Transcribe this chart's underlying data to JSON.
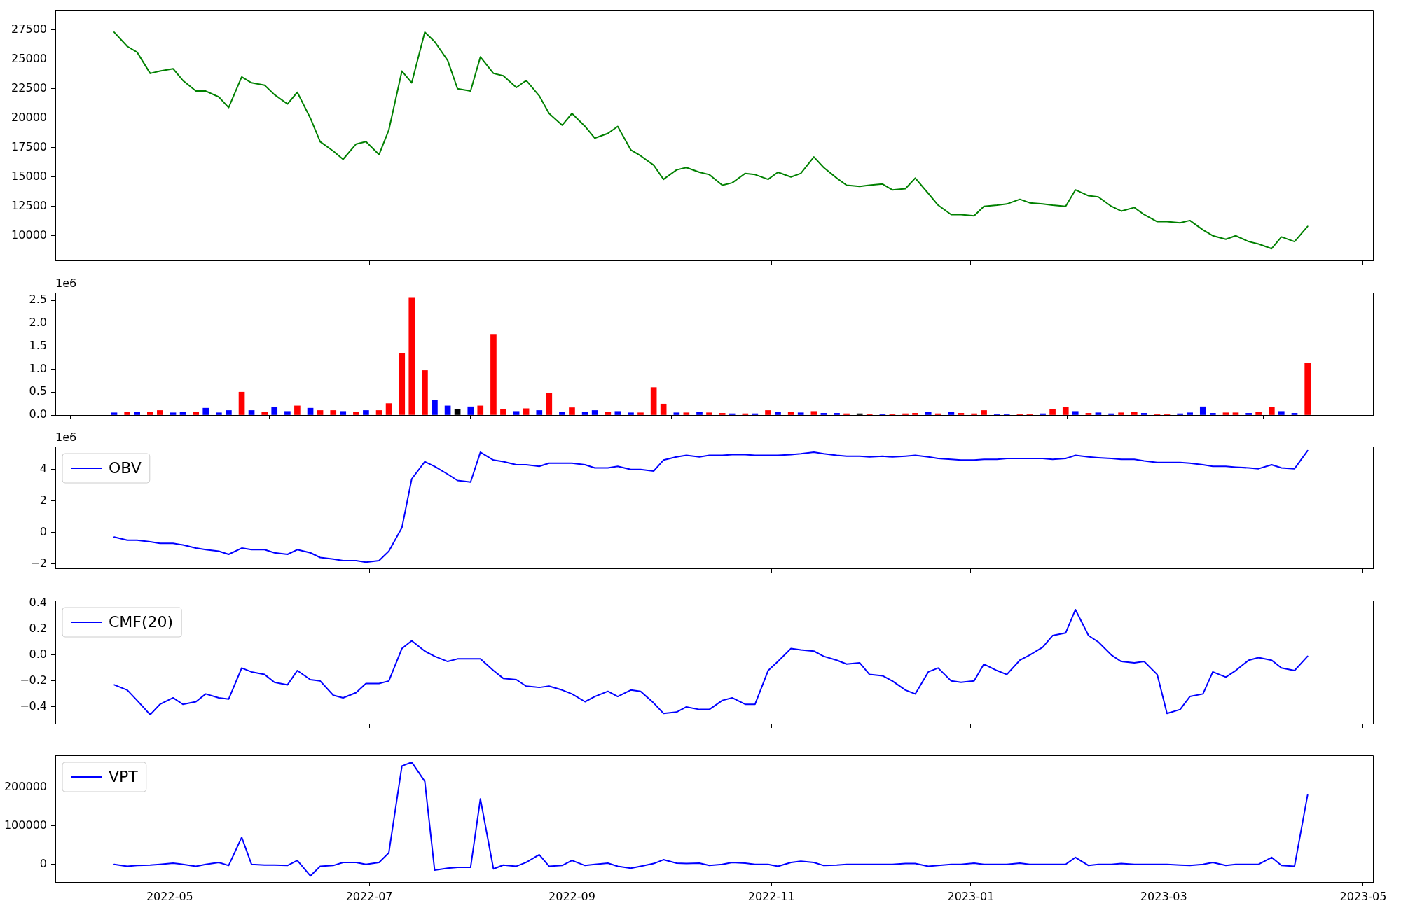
{
  "chart_data": [
    {
      "type": "line",
      "x": [
        "2022-04-14",
        "2022-04-18",
        "2022-04-21",
        "2022-04-25",
        "2022-04-28",
        "2022-05-02",
        "2022-05-05",
        "2022-05-09",
        "2022-05-12",
        "2022-05-16",
        "2022-05-19",
        "2022-05-23",
        "2022-05-26",
        "2022-05-30",
        "2022-06-02",
        "2022-06-06",
        "2022-06-09",
        "2022-06-13",
        "2022-06-16",
        "2022-06-20",
        "2022-06-23",
        "2022-06-27",
        "2022-06-30",
        "2022-07-04",
        "2022-07-07",
        "2022-07-11",
        "2022-07-14",
        "2022-07-18",
        "2022-07-21",
        "2022-07-25",
        "2022-07-28",
        "2022-08-01",
        "2022-08-04",
        "2022-08-08",
        "2022-08-11",
        "2022-08-15",
        "2022-08-18",
        "2022-08-22",
        "2022-08-25",
        "2022-08-29",
        "2022-09-01",
        "2022-09-05",
        "2022-09-08",
        "2022-09-12",
        "2022-09-15",
        "2022-09-19",
        "2022-09-22",
        "2022-09-26",
        "2022-09-29",
        "2022-10-03",
        "2022-10-06",
        "2022-10-10",
        "2022-10-13",
        "2022-10-17",
        "2022-10-20",
        "2022-10-24",
        "2022-10-27",
        "2022-10-31",
        "2022-11-03",
        "2022-11-07",
        "2022-11-10",
        "2022-11-14",
        "2022-11-17",
        "2022-11-21",
        "2022-11-24",
        "2022-11-28",
        "2022-12-01",
        "2022-12-05",
        "2022-12-08",
        "2022-12-12",
        "2022-12-15",
        "2022-12-19",
        "2022-12-22",
        "2022-12-26",
        "2022-12-29",
        "2023-01-02",
        "2023-01-05",
        "2023-01-09",
        "2023-01-12",
        "2023-01-16",
        "2023-01-19",
        "2023-01-23",
        "2023-01-26",
        "2023-01-30",
        "2023-02-02",
        "2023-02-06",
        "2023-02-09",
        "2023-02-13",
        "2023-02-16",
        "2023-02-20",
        "2023-02-23",
        "2023-02-27",
        "2023-03-02",
        "2023-03-06",
        "2023-03-09",
        "2023-03-13",
        "2023-03-16",
        "2023-03-20",
        "2023-03-23",
        "2023-03-27",
        "2023-03-30",
        "2023-04-03",
        "2023-04-06",
        "2023-04-10",
        "2023-04-14"
      ],
      "series": [
        {
          "color": "#008000",
          "values": [
            27300,
            26100,
            25600,
            23800,
            24000,
            24200,
            23200,
            22300,
            22300,
            21800,
            20900,
            23500,
            23000,
            22800,
            22000,
            21200,
            22200,
            20000,
            18000,
            17200,
            16500,
            17800,
            18000,
            16900,
            19000,
            24000,
            23000,
            27300,
            26500,
            24900,
            22500,
            22300,
            25200,
            23800,
            23600,
            22600,
            23200,
            21900,
            20400,
            19400,
            20400,
            19300,
            18300,
            18700,
            19300,
            17300,
            16800,
            16000,
            14800,
            15600,
            15800,
            15400,
            15200,
            14300,
            14500,
            15300,
            15200,
            14800,
            15400,
            15000,
            15300,
            16700,
            15800,
            14900,
            14300,
            14200,
            14300,
            14400,
            13900,
            14000,
            14900,
            13600,
            12600,
            11800,
            11800,
            11700,
            12500,
            12600,
            12700,
            13100,
            12800,
            12700,
            12600,
            12500,
            13900,
            13400,
            13300,
            12500,
            12100,
            12400,
            11800,
            11200,
            11200,
            11100,
            11300,
            10500,
            10000,
            9700,
            10000,
            9500,
            9300,
            8900,
            9900,
            9500,
            10800
          ]
        }
      ],
      "xlim": [
        "2022-03-27",
        "2023-05-04"
      ],
      "xticks": [
        "2022-05",
        "2022-07",
        "2022-09",
        "2022-11",
        "2023-01",
        "2023-03",
        "2023-05"
      ],
      "ylim": [
        7900,
        29150
      ],
      "yticks": [
        10000,
        12500,
        15000,
        17500,
        20000,
        22500,
        25000,
        27500
      ],
      "tick_labels": "y"
    },
    {
      "type": "bar",
      "x": [
        "2022-04-14",
        "2022-04-18",
        "2022-04-21",
        "2022-04-25",
        "2022-04-28",
        "2022-05-02",
        "2022-05-05",
        "2022-05-09",
        "2022-05-12",
        "2022-05-16",
        "2022-05-19",
        "2022-05-23",
        "2022-05-26",
        "2022-05-30",
        "2022-06-02",
        "2022-06-06",
        "2022-06-09",
        "2022-06-13",
        "2022-06-16",
        "2022-06-20",
        "2022-06-23",
        "2022-06-27",
        "2022-06-30",
        "2022-07-04",
        "2022-07-07",
        "2022-07-11",
        "2022-07-14",
        "2022-07-18",
        "2022-07-21",
        "2022-07-25",
        "2022-07-28",
        "2022-08-01",
        "2022-08-04",
        "2022-08-08",
        "2022-08-11",
        "2022-08-15",
        "2022-08-18",
        "2022-08-22",
        "2022-08-25",
        "2022-08-29",
        "2022-09-01",
        "2022-09-05",
        "2022-09-08",
        "2022-09-12",
        "2022-09-15",
        "2022-09-19",
        "2022-09-22",
        "2022-09-26",
        "2022-09-29",
        "2022-10-03",
        "2022-10-06",
        "2022-10-10",
        "2022-10-13",
        "2022-10-17",
        "2022-10-20",
        "2022-10-24",
        "2022-10-27",
        "2022-10-31",
        "2022-11-03",
        "2022-11-07",
        "2022-11-10",
        "2022-11-14",
        "2022-11-17",
        "2022-11-21",
        "2022-11-24",
        "2022-11-28",
        "2022-12-01",
        "2022-12-05",
        "2022-12-08",
        "2022-12-12",
        "2022-12-15",
        "2022-12-19",
        "2022-12-22",
        "2022-12-26",
        "2022-12-29",
        "2023-01-02",
        "2023-01-05",
        "2023-01-09",
        "2023-01-12",
        "2023-01-16",
        "2023-01-19",
        "2023-01-23",
        "2023-01-26",
        "2023-01-30",
        "2023-02-02",
        "2023-02-06",
        "2023-02-09",
        "2023-02-13",
        "2023-02-16",
        "2023-02-20",
        "2023-02-23",
        "2023-02-27",
        "2023-03-02",
        "2023-03-06",
        "2023-03-09",
        "2023-03-13",
        "2023-03-16",
        "2023-03-20",
        "2023-03-23",
        "2023-03-27",
        "2023-03-30",
        "2023-04-03",
        "2023-04-06",
        "2023-04-10",
        "2023-04-14"
      ],
      "values": [
        0.05,
        0.06,
        0.06,
        0.07,
        0.1,
        0.05,
        0.07,
        0.06,
        0.15,
        0.05,
        0.1,
        0.5,
        0.1,
        0.07,
        0.17,
        0.08,
        0.2,
        0.15,
        0.1,
        0.1,
        0.08,
        0.07,
        0.1,
        0.1,
        0.25,
        1.35,
        2.55,
        0.97,
        0.33,
        0.2,
        0.12,
        0.18,
        0.2,
        1.76,
        0.12,
        0.08,
        0.14,
        0.1,
        0.47,
        0.06,
        0.16,
        0.06,
        0.1,
        0.07,
        0.08,
        0.05,
        0.05,
        0.6,
        0.24,
        0.05,
        0.05,
        0.06,
        0.05,
        0.04,
        0.03,
        0.03,
        0.03,
        0.1,
        0.06,
        0.07,
        0.05,
        0.08,
        0.04,
        0.04,
        0.03,
        0.03,
        0.02,
        0.02,
        0.02,
        0.03,
        0.04,
        0.06,
        0.03,
        0.07,
        0.04,
        0.03,
        0.1,
        0.02,
        0.01,
        0.02,
        0.02,
        0.03,
        0.12,
        0.17,
        0.08,
        0.04,
        0.05,
        0.03,
        0.05,
        0.06,
        0.04,
        0.02,
        0.02,
        0.03,
        0.05,
        0.18,
        0.04,
        0.05,
        0.05,
        0.04,
        0.06,
        0.17,
        0.08,
        0.04,
        1.13
      ],
      "colors": [
        "#0000ff",
        "#ff0000",
        "#0000ff",
        "#ff0000",
        "#ff0000",
        "#0000ff",
        "#0000ff",
        "#ff0000",
        "#0000ff",
        "#0000ff",
        "#0000ff",
        "#ff0000",
        "#0000ff",
        "#ff0000",
        "#0000ff",
        "#0000ff",
        "#ff0000",
        "#0000ff",
        "#ff0000",
        "#ff0000",
        "#0000ff",
        "#ff0000",
        "#0000ff",
        "#ff0000",
        "#ff0000",
        "#ff0000",
        "#ff0000",
        "#ff0000",
        "#0000ff",
        "#0000ff",
        "#000000",
        "#0000ff",
        "#ff0000",
        "#ff0000",
        "#ff0000",
        "#0000ff",
        "#ff0000",
        "#0000ff",
        "#ff0000",
        "#0000ff",
        "#ff0000",
        "#0000ff",
        "#0000ff",
        "#ff0000",
        "#0000ff",
        "#0000ff",
        "#ff0000",
        "#ff0000",
        "#ff0000",
        "#0000ff",
        "#ff0000",
        "#0000ff",
        "#ff0000",
        "#ff0000",
        "#0000ff",
        "#ff0000",
        "#0000ff",
        "#ff0000",
        "#0000ff",
        "#ff0000",
        "#0000ff",
        "#ff0000",
        "#0000ff",
        "#0000ff",
        "#ff0000",
        "#000000",
        "#ff0000",
        "#0000ff",
        "#ff0000",
        "#ff0000",
        "#ff0000",
        "#0000ff",
        "#ff0000",
        "#0000ff",
        "#ff0000",
        "#ff0000",
        "#ff0000",
        "#0000ff",
        "#0000ff",
        "#ff0000",
        "#ff0000",
        "#0000ff",
        "#ff0000",
        "#ff0000",
        "#0000ff",
        "#ff0000",
        "#0000ff",
        "#0000ff",
        "#ff0000",
        "#ff0000",
        "#0000ff",
        "#ff0000",
        "#ff0000",
        "#0000ff",
        "#0000ff",
        "#0000ff",
        "#0000ff",
        "#ff0000",
        "#ff0000",
        "#0000ff",
        "#ff0000",
        "#ff0000",
        "#0000ff",
        "#0000ff",
        "#ff0000"
      ],
      "xlim": [
        "2022-03-27",
        "2023-05-04"
      ],
      "xticks": [
        "2022-05",
        "2022-07",
        "2022-09",
        "2022-11",
        "2023-01",
        "2023-03",
        "2023-05"
      ],
      "ylim": [
        0,
        2.67
      ],
      "yticks": [
        {
          "value": 0,
          "label": "0.0"
        },
        0.5,
        {
          "value": 1,
          "label": "1.0"
        },
        1.5,
        {
          "value": 2,
          "label": "2.0"
        },
        2.5
      ],
      "annotations": [
        "1e6"
      ],
      "tick_labels": "y"
    },
    {
      "type": "line",
      "x": [
        "2022-04-14",
        "2022-04-18",
        "2022-04-21",
        "2022-04-25",
        "2022-04-28",
        "2022-05-02",
        "2022-05-05",
        "2022-05-09",
        "2022-05-12",
        "2022-05-16",
        "2022-05-19",
        "2022-05-23",
        "2022-05-26",
        "2022-05-30",
        "2022-06-02",
        "2022-06-06",
        "2022-06-09",
        "2022-06-13",
        "2022-06-16",
        "2022-06-20",
        "2022-06-23",
        "2022-06-27",
        "2022-06-30",
        "2022-07-04",
        "2022-07-07",
        "2022-07-11",
        "2022-07-14",
        "2022-07-18",
        "2022-07-21",
        "2022-07-25",
        "2022-07-28",
        "2022-08-01",
        "2022-08-04",
        "2022-08-08",
        "2022-08-11",
        "2022-08-15",
        "2022-08-18",
        "2022-08-22",
        "2022-08-25",
        "2022-08-29",
        "2022-09-01",
        "2022-09-05",
        "2022-09-08",
        "2022-09-12",
        "2022-09-15",
        "2022-09-19",
        "2022-09-22",
        "2022-09-26",
        "2022-09-29",
        "2022-10-03",
        "2022-10-06",
        "2022-10-10",
        "2022-10-13",
        "2022-10-17",
        "2022-10-20",
        "2022-10-24",
        "2022-10-27",
        "2022-10-31",
        "2022-11-03",
        "2022-11-07",
        "2022-11-10",
        "2022-11-14",
        "2022-11-17",
        "2022-11-21",
        "2022-11-24",
        "2022-11-28",
        "2022-12-01",
        "2022-12-05",
        "2022-12-08",
        "2022-12-12",
        "2022-12-15",
        "2022-12-19",
        "2022-12-22",
        "2022-12-26",
        "2022-12-29",
        "2023-01-02",
        "2023-01-05",
        "2023-01-09",
        "2023-01-12",
        "2023-01-16",
        "2023-01-19",
        "2023-01-23",
        "2023-01-26",
        "2023-01-30",
        "2023-02-02",
        "2023-02-06",
        "2023-02-09",
        "2023-02-13",
        "2023-02-16",
        "2023-02-20",
        "2023-02-23",
        "2023-02-27",
        "2023-03-02",
        "2023-03-06",
        "2023-03-09",
        "2023-03-13",
        "2023-03-16",
        "2023-03-20",
        "2023-03-23",
        "2023-03-27",
        "2023-03-30",
        "2023-04-03",
        "2023-04-06",
        "2023-04-10",
        "2023-04-14"
      ],
      "series": [
        {
          "name": "OBV",
          "color": "#0000ff",
          "values": [
            -0.3,
            -0.5,
            -0.5,
            -0.6,
            -0.7,
            -0.7,
            -0.8,
            -1.0,
            -1.1,
            -1.2,
            -1.4,
            -1.0,
            -1.1,
            -1.1,
            -1.3,
            -1.4,
            -1.1,
            -1.3,
            -1.6,
            -1.7,
            -1.8,
            -1.8,
            -1.9,
            -1.8,
            -1.2,
            0.3,
            3.4,
            4.5,
            4.2,
            3.7,
            3.3,
            3.2,
            5.1,
            4.6,
            4.5,
            4.3,
            4.3,
            4.2,
            4.4,
            4.4,
            4.4,
            4.3,
            4.1,
            4.1,
            4.2,
            4.0,
            4.0,
            3.9,
            4.6,
            4.8,
            4.9,
            4.8,
            4.9,
            4.9,
            4.95,
            4.95,
            4.9,
            4.9,
            4.9,
            4.95,
            5.0,
            5.1,
            5.0,
            4.9,
            4.85,
            4.85,
            4.8,
            4.85,
            4.8,
            4.85,
            4.9,
            4.8,
            4.7,
            4.65,
            4.6,
            4.6,
            4.65,
            4.65,
            4.7,
            4.7,
            4.7,
            4.7,
            4.65,
            4.7,
            4.9,
            4.8,
            4.75,
            4.7,
            4.65,
            4.65,
            4.55,
            4.45,
            4.45,
            4.45,
            4.4,
            4.3,
            4.2,
            4.2,
            4.15,
            4.1,
            4.05,
            4.3,
            4.1,
            4.05,
            5.2
          ]
        }
      ],
      "xlim": [
        "2022-03-27",
        "2023-05-04"
      ],
      "xticks": [
        "2022-05",
        "2022-07",
        "2022-09",
        "2022-11",
        "2023-01",
        "2023-03",
        "2023-05"
      ],
      "ylim": [
        -2.29,
        5.46
      ],
      "yticks": [
        {
          "value": -2,
          "label": "−2"
        },
        0,
        2,
        4
      ],
      "annotations": [
        "1e6"
      ],
      "legend": "top left",
      "tick_labels": "y"
    },
    {
      "type": "line",
      "x": [
        "2022-04-14",
        "2022-04-18",
        "2022-04-21",
        "2022-04-25",
        "2022-04-28",
        "2022-05-02",
        "2022-05-05",
        "2022-05-09",
        "2022-05-12",
        "2022-05-16",
        "2022-05-19",
        "2022-05-23",
        "2022-05-26",
        "2022-05-30",
        "2022-06-02",
        "2022-06-06",
        "2022-06-09",
        "2022-06-13",
        "2022-06-16",
        "2022-06-20",
        "2022-06-23",
        "2022-06-27",
        "2022-06-30",
        "2022-07-04",
        "2022-07-07",
        "2022-07-11",
        "2022-07-14",
        "2022-07-18",
        "2022-07-21",
        "2022-07-25",
        "2022-07-28",
        "2022-08-01",
        "2022-08-04",
        "2022-08-08",
        "2022-08-11",
        "2022-08-15",
        "2022-08-18",
        "2022-08-22",
        "2022-08-25",
        "2022-08-29",
        "2022-09-01",
        "2022-09-05",
        "2022-09-08",
        "2022-09-12",
        "2022-09-15",
        "2022-09-19",
        "2022-09-22",
        "2022-09-26",
        "2022-09-29",
        "2022-10-03",
        "2022-10-06",
        "2022-10-10",
        "2022-10-13",
        "2022-10-17",
        "2022-10-20",
        "2022-10-24",
        "2022-10-27",
        "2022-10-31",
        "2022-11-03",
        "2022-11-07",
        "2022-11-10",
        "2022-11-14",
        "2022-11-17",
        "2022-11-21",
        "2022-11-24",
        "2022-11-28",
        "2022-12-01",
        "2022-12-05",
        "2022-12-08",
        "2022-12-12",
        "2022-12-15",
        "2022-12-19",
        "2022-12-22",
        "2022-12-26",
        "2022-12-29",
        "2023-01-02",
        "2023-01-05",
        "2023-01-09",
        "2023-01-12",
        "2023-01-16",
        "2023-01-19",
        "2023-01-23",
        "2023-01-26",
        "2023-01-30",
        "2023-02-02",
        "2023-02-06",
        "2023-02-09",
        "2023-02-13",
        "2023-02-16",
        "2023-02-20",
        "2023-02-23",
        "2023-02-27",
        "2023-03-02",
        "2023-03-06",
        "2023-03-09",
        "2023-03-13",
        "2023-03-16",
        "2023-03-20",
        "2023-03-23",
        "2023-03-27",
        "2023-03-30",
        "2023-04-03",
        "2023-04-06",
        "2023-04-10",
        "2023-04-14"
      ],
      "series": [
        {
          "name": "CMF(20)",
          "color": "#0000ff",
          "values": [
            -0.23,
            -0.27,
            -0.35,
            -0.46,
            -0.38,
            -0.33,
            -0.38,
            -0.36,
            -0.3,
            -0.33,
            -0.34,
            -0.1,
            -0.13,
            -0.15,
            -0.21,
            -0.23,
            -0.12,
            -0.19,
            -0.2,
            -0.31,
            -0.33,
            -0.29,
            -0.22,
            -0.22,
            -0.2,
            0.05,
            0.11,
            0.03,
            -0.01,
            -0.05,
            -0.03,
            -0.03,
            -0.03,
            -0.12,
            -0.18,
            -0.19,
            -0.24,
            -0.25,
            -0.24,
            -0.27,
            -0.3,
            -0.36,
            -0.32,
            -0.28,
            -0.32,
            -0.27,
            -0.28,
            -0.37,
            -0.45,
            -0.44,
            -0.4,
            -0.42,
            -0.42,
            -0.35,
            -0.33,
            -0.38,
            -0.38,
            -0.12,
            -0.05,
            0.05,
            0.04,
            0.03,
            -0.01,
            -0.04,
            -0.07,
            -0.06,
            -0.15,
            -0.16,
            -0.2,
            -0.27,
            -0.3,
            -0.13,
            -0.1,
            -0.2,
            -0.21,
            -0.2,
            -0.07,
            -0.12,
            -0.15,
            -0.04,
            0.0,
            0.06,
            0.15,
            0.17,
            0.35,
            0.15,
            0.1,
            0.0,
            -0.05,
            -0.06,
            -0.05,
            -0.15,
            -0.45,
            -0.42,
            -0.32,
            -0.3,
            -0.13,
            -0.17,
            -0.12,
            -0.04,
            -0.02,
            -0.04,
            -0.1,
            -0.12,
            -0.01
          ]
        }
      ],
      "xlim": [
        "2022-03-27",
        "2023-05-04"
      ],
      "xticks": [
        "2022-05",
        "2022-07",
        "2022-09",
        "2022-11",
        "2023-01",
        "2023-03",
        "2023-05"
      ],
      "ylim": [
        -0.53,
        0.42
      ],
      "yticks": [
        {
          "value": -0.4,
          "label": "−0.4"
        },
        {
          "value": -0.2,
          "label": "−0.2"
        },
        {
          "value": 0,
          "label": "0.0"
        },
        0.2,
        0.4
      ],
      "legend": "top left",
      "tick_labels": "y"
    },
    {
      "type": "line",
      "x": [
        "2022-04-14",
        "2022-04-18",
        "2022-04-21",
        "2022-04-25",
        "2022-04-28",
        "2022-05-02",
        "2022-05-05",
        "2022-05-09",
        "2022-05-12",
        "2022-05-16",
        "2022-05-19",
        "2022-05-23",
        "2022-05-26",
        "2022-05-30",
        "2022-06-02",
        "2022-06-06",
        "2022-06-09",
        "2022-06-13",
        "2022-06-16",
        "2022-06-20",
        "2022-06-23",
        "2022-06-27",
        "2022-06-30",
        "2022-07-04",
        "2022-07-07",
        "2022-07-11",
        "2022-07-14",
        "2022-07-18",
        "2022-07-21",
        "2022-07-25",
        "2022-07-28",
        "2022-08-01",
        "2022-08-04",
        "2022-08-08",
        "2022-08-11",
        "2022-08-15",
        "2022-08-18",
        "2022-08-22",
        "2022-08-25",
        "2022-08-29",
        "2022-09-01",
        "2022-09-05",
        "2022-09-08",
        "2022-09-12",
        "2022-09-15",
        "2022-09-19",
        "2022-09-22",
        "2022-09-26",
        "2022-09-29",
        "2022-10-03",
        "2022-10-06",
        "2022-10-10",
        "2022-10-13",
        "2022-10-17",
        "2022-10-20",
        "2022-10-24",
        "2022-10-27",
        "2022-10-31",
        "2022-11-03",
        "2022-11-07",
        "2022-11-10",
        "2022-11-14",
        "2022-11-17",
        "2022-11-21",
        "2022-11-24",
        "2022-11-28",
        "2022-12-01",
        "2022-12-05",
        "2022-12-08",
        "2022-12-12",
        "2022-12-15",
        "2022-12-19",
        "2022-12-22",
        "2022-12-26",
        "2022-12-29",
        "2023-01-02",
        "2023-01-05",
        "2023-01-09",
        "2023-01-12",
        "2023-01-16",
        "2023-01-19",
        "2023-01-23",
        "2023-01-26",
        "2023-01-30",
        "2023-02-02",
        "2023-02-06",
        "2023-02-09",
        "2023-02-13",
        "2023-02-16",
        "2023-02-20",
        "2023-02-23",
        "2023-02-27",
        "2023-03-02",
        "2023-03-06",
        "2023-03-09",
        "2023-03-13",
        "2023-03-16",
        "2023-03-20",
        "2023-03-23",
        "2023-03-27",
        "2023-03-30",
        "2023-04-03",
        "2023-04-06",
        "2023-04-10",
        "2023-04-14"
      ],
      "series": [
        {
          "name": "VPT",
          "color": "#0000ff",
          "values": [
            0,
            -5000,
            -3000,
            -2000,
            0,
            3000,
            0,
            -5000,
            0,
            5000,
            -3000,
            70000,
            0,
            -2000,
            -2000,
            -3000,
            10000,
            -30000,
            -5000,
            -3000,
            5000,
            5000,
            0,
            5000,
            30000,
            255000,
            265000,
            215000,
            -15000,
            -10000,
            -8000,
            -8000,
            170000,
            -12000,
            -2000,
            -5000,
            5000,
            25000,
            -5000,
            -3000,
            10000,
            -3000,
            0,
            3000,
            -5000,
            -10000,
            -5000,
            2000,
            12000,
            3000,
            2000,
            3000,
            -3000,
            0,
            5000,
            3000,
            0,
            0,
            -5000,
            5000,
            8000,
            5000,
            -3000,
            -2000,
            0,
            0,
            0,
            0,
            0,
            2000,
            2000,
            -5000,
            -3000,
            0,
            0,
            3000,
            0,
            0,
            0,
            3000,
            0,
            0,
            0,
            0,
            18000,
            -3000,
            0,
            0,
            2000,
            0,
            0,
            0,
            0,
            -2000,
            -3000,
            0,
            5000,
            -3000,
            0,
            0,
            0,
            18000,
            -3000,
            -5000,
            180000
          ]
        }
      ],
      "xlim": [
        "2022-03-27",
        "2023-05-04"
      ],
      "xticks": [
        "2022-05",
        "2022-07",
        "2022-09",
        "2022-11",
        "2023-01",
        "2023-03",
        "2023-05"
      ],
      "ylim": [
        -46000,
        283000
      ],
      "yticks": [
        0,
        100000,
        200000
      ],
      "legend": "top left"
    }
  ]
}
